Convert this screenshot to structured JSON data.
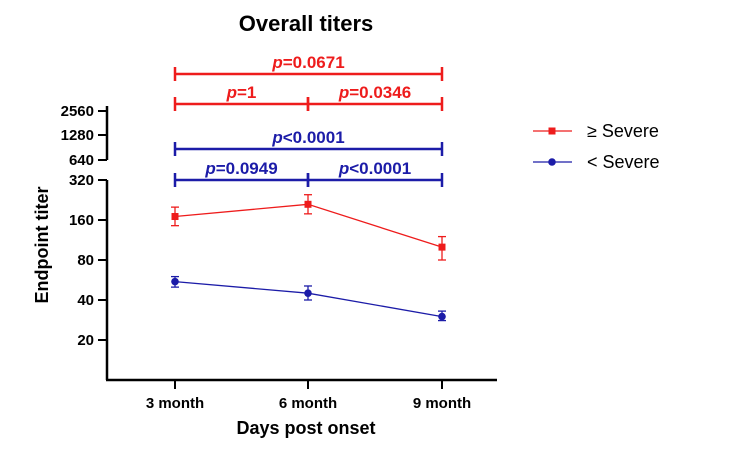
{
  "chart_data": {
    "type": "line",
    "title": "Overall titers",
    "xlabel": "Days post onset",
    "ylabel": "Endpoint titer",
    "y_scale": "log2",
    "y_axis_break": true,
    "y_ticks_lower": [
      "20",
      "40",
      "80",
      "160",
      "320"
    ],
    "y_ticks_upper": [
      "640",
      "1280",
      "2560"
    ],
    "categories": [
      "3 month",
      "6 month",
      "9 month"
    ],
    "series": [
      {
        "name": "≥ Severe",
        "color": "#ee1c1c",
        "marker": "square",
        "values": [
          170,
          210,
          100
        ],
        "err_low": [
          145,
          178,
          80
        ],
        "err_high": [
          200,
          248,
          120
        ]
      },
      {
        "name": "< Severe",
        "color": "#1c1ca8",
        "marker": "circle",
        "values": [
          55,
          45,
          30
        ],
        "err_low": [
          50,
          40,
          28
        ],
        "err_high": [
          60,
          51,
          33
        ]
      }
    ],
    "comparisons": [
      {
        "label": "p=0.0671",
        "from": 0,
        "to": 2,
        "series": "≥ Severe",
        "color": "#ee1c1c"
      },
      {
        "label": "p=1",
        "from": 0,
        "to": 1,
        "series": "≥ Severe",
        "color": "#ee1c1c"
      },
      {
        "label": "p=0.0346",
        "from": 1,
        "to": 2,
        "series": "≥ Severe",
        "color": "#ee1c1c"
      },
      {
        "label": "p<0.0001",
        "from": 0,
        "to": 2,
        "series": "< Severe",
        "color": "#1c1ca8"
      },
      {
        "label": "p=0.0949",
        "from": 0,
        "to": 1,
        "series": "< Severe",
        "color": "#1c1ca8"
      },
      {
        "label": "p<0.0001",
        "from": 1,
        "to": 2,
        "series": "< Severe",
        "color": "#1c1ca8"
      }
    ],
    "legend_position": "right"
  }
}
